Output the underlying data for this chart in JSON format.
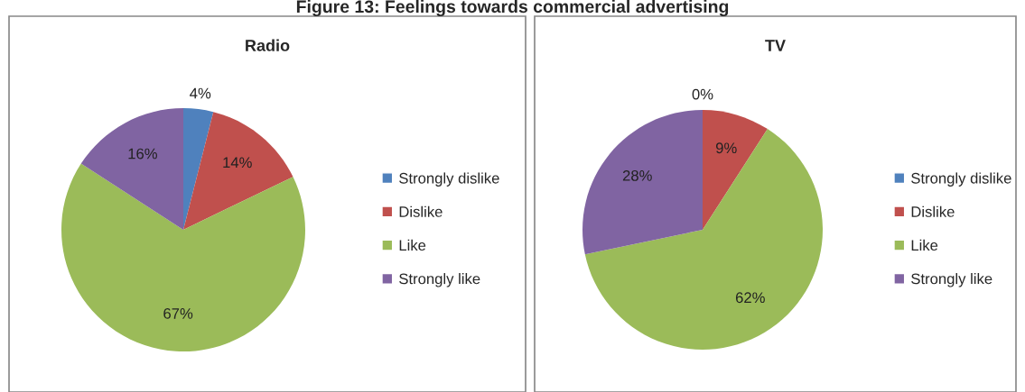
{
  "chart_data": [
    {
      "type": "pie",
      "title": "Radio",
      "annotations": [
        "Figure 13: Feelings towards commercial advertising"
      ],
      "categories": [
        "Strongly dislike",
        "Dislike",
        "Like",
        "Strongly like"
      ],
      "values": [
        4,
        14,
        67,
        16
      ],
      "value_labels": [
        "4%",
        "14%",
        "67%",
        "16%"
      ],
      "colors": [
        "#4f81bd",
        "#c0504d",
        "#9bbb59",
        "#8064a2"
      ],
      "legend": "right"
    },
    {
      "type": "pie",
      "title": "TV",
      "categories": [
        "Strongly dislike",
        "Dislike",
        "Like",
        "Strongly like"
      ],
      "values": [
        0,
        9,
        62,
        28
      ],
      "value_labels": [
        "0%",
        "9%",
        "62%",
        "28%"
      ],
      "colors": [
        "#4f81bd",
        "#c0504d",
        "#9bbb59",
        "#8064a2"
      ],
      "legend": "right"
    }
  ]
}
